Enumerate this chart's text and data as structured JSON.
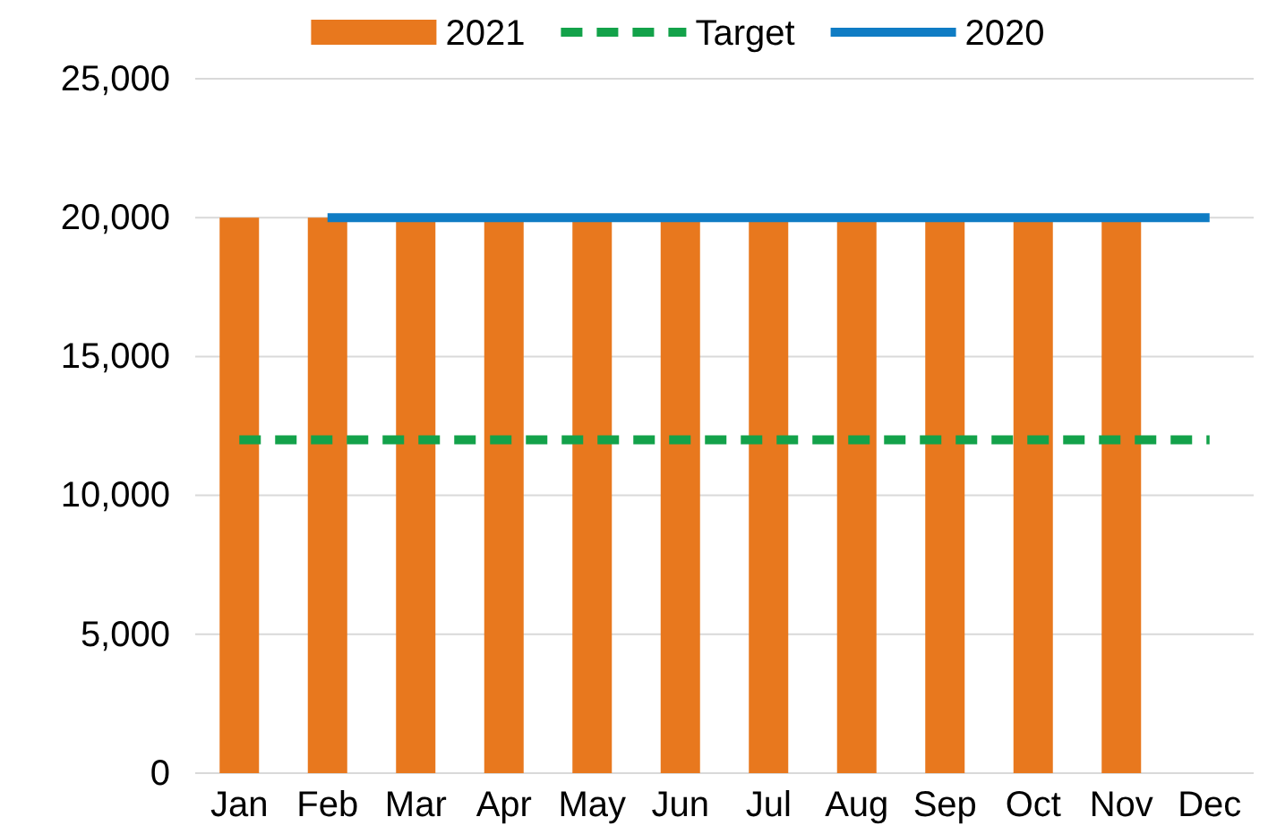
{
  "chart_data": {
    "type": "bar",
    "categories": [
      "Jan",
      "Feb",
      "Mar",
      "Apr",
      "May",
      "Jun",
      "Jul",
      "Aug",
      "Sep",
      "Oct",
      "Nov",
      "Dec"
    ],
    "series": [
      {
        "name": "2021",
        "color": "#e8781e",
        "values": [
          20000,
          20000,
          20000,
          20000,
          20000,
          20000,
          20000,
          20000,
          20000,
          20000,
          20000,
          null
        ]
      },
      {
        "name": "Target",
        "type": "line",
        "line_style": "dashed",
        "color": "#13a24a",
        "values": [
          12000,
          12000,
          12000,
          12000,
          12000,
          12000,
          12000,
          12000,
          12000,
          12000,
          12000,
          12000
        ]
      },
      {
        "name": "2020",
        "type": "line",
        "line_style": "solid",
        "color": "#0f7cc4",
        "values": [
          null,
          20000,
          20000,
          20000,
          20000,
          20000,
          20000,
          20000,
          20000,
          20000,
          20000,
          20000
        ]
      }
    ],
    "ylim": [
      0,
      25000
    ],
    "yticks": [
      0,
      {
        "value": 5000,
        "label": "5,000"
      },
      {
        "value": 10000,
        "label": "10,000"
      },
      {
        "value": 15000,
        "label": "15,000"
      },
      {
        "value": 20000,
        "label": "20,000"
      },
      {
        "value": 25000,
        "label": "25,000"
      }
    ],
    "grid": "y",
    "legend": "top"
  }
}
